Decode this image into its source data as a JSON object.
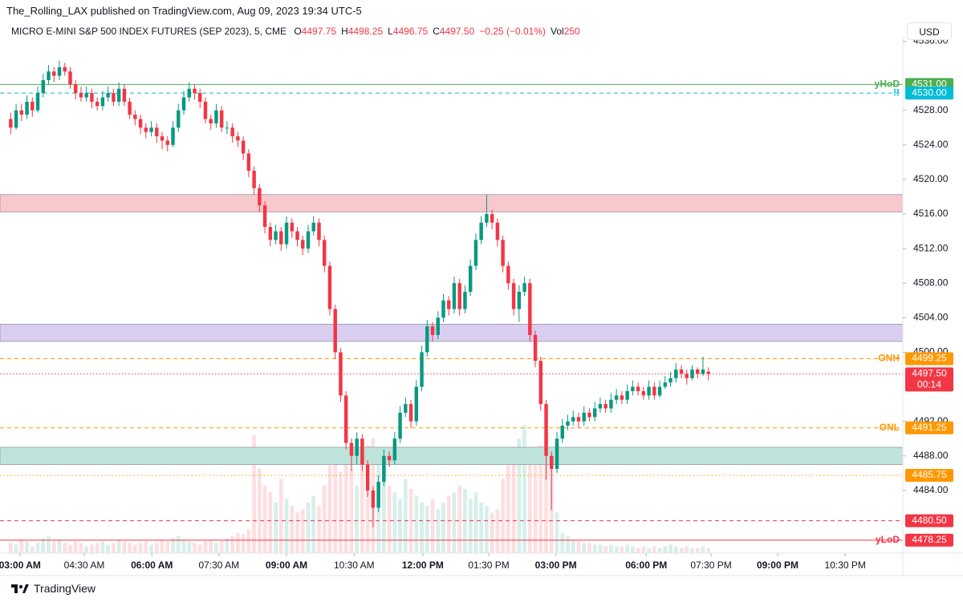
{
  "header": {
    "author_line": "The_Rolling_LAX published on TradingView.com, Aug 09, 2023 19:34 UTC-5"
  },
  "chart_data": {
    "type": "candlestick",
    "symbol": "MICRO E-MINI S&P 500 INDEX FUTURES (SEP 2023), 5, CME",
    "legend": {
      "ohlc": [
        {
          "key": "O",
          "value": 4497.75
        },
        {
          "key": "H",
          "value": 4498.25
        },
        {
          "key": "L",
          "value": 4496.75
        },
        {
          "key": "C",
          "value": {
            "value": 4497.5,
            "label": "4497.50"
          }
        }
      ],
      "change": "−0.25 (−0.01%)",
      "vol_key": "Vol",
      "vol": 250
    },
    "currency": "USD",
    "colors": {
      "up": "#089981",
      "down": "#f23645"
    },
    "candles": [
      [
        4527,
        4527.75,
        4525.25,
        4526
      ],
      [
        4526,
        4528.75,
        4525.75,
        4528
      ],
      [
        4528,
        4528.75,
        4526.75,
        4527.5
      ],
      [
        4527.5,
        4529.75,
        4527,
        4529
      ],
      [
        4529,
        4529.5,
        4527.25,
        4528
      ],
      [
        4528,
        4530.75,
        4527.75,
        4530
      ],
      [
        4530,
        4532.25,
        4529.5,
        4531.5
      ],
      [
        4531.5,
        4533.25,
        4531,
        4532.5
      ],
      [
        4532.5,
        4533,
        4531.25,
        4532
      ],
      [
        4532,
        4533.75,
        4531.5,
        4533
      ],
      [
        4533,
        4533.5,
        4532,
        4532.5
      ],
      [
        4532.5,
        4533,
        4530.5,
        4531
      ],
      [
        4531,
        4531.5,
        4529.25,
        4530
      ],
      [
        4530,
        4530.75,
        4529,
        4529.5
      ],
      [
        4529.5,
        4530.75,
        4529,
        4530
      ],
      [
        4530,
        4530.5,
        4528.25,
        4529
      ],
      [
        4529,
        4529.5,
        4528,
        4528.5
      ],
      [
        4528.5,
        4530.25,
        4528,
        4529.5
      ],
      [
        4529.5,
        4530.75,
        4529,
        4530
      ],
      [
        4530,
        4530.5,
        4528.5,
        4529
      ],
      [
        4529,
        4531.25,
        4528.5,
        4530.5
      ],
      [
        4530.5,
        4531,
        4528.5,
        4529
      ],
      [
        4529,
        4529.5,
        4527,
        4527.5
      ],
      [
        4527.5,
        4528,
        4526.25,
        4527
      ],
      [
        4527,
        4527.5,
        4525.25,
        4526
      ],
      [
        4526,
        4526.5,
        4524.75,
        4525.5
      ],
      [
        4525.5,
        4526.75,
        4525,
        4526
      ],
      [
        4526,
        4526.5,
        4524.25,
        4525
      ],
      [
        4525,
        4525.5,
        4523.5,
        4524.5
      ],
      [
        4524.5,
        4525,
        4523.25,
        4524
      ],
      [
        4524,
        4526.75,
        4523.75,
        4526
      ],
      [
        4526,
        4528.75,
        4525.5,
        4528
      ],
      [
        4528,
        4530.25,
        4527.5,
        4529.5
      ],
      [
        4529.5,
        4531.25,
        4529,
        4530.5
      ],
      [
        4530.5,
        4531,
        4529.25,
        4530
      ],
      [
        4530,
        4530.5,
        4528.25,
        4529
      ],
      [
        4529,
        4529.5,
        4526.5,
        4527
      ],
      [
        4527,
        4527.5,
        4525.75,
        4526.5
      ],
      [
        4526.5,
        4528.75,
        4526,
        4528
      ],
      [
        4528,
        4528.5,
        4525.5,
        4526
      ],
      [
        4526,
        4526.75,
        4525.25,
        4526
      ],
      [
        4526,
        4526.5,
        4524.25,
        4525
      ],
      [
        4525,
        4525.5,
        4523.75,
        4524.5
      ],
      [
        4524.5,
        4525,
        4522.25,
        4523
      ],
      [
        4523,
        4523.5,
        4520.25,
        4521
      ],
      [
        4521,
        4521.5,
        4518.25,
        4519
      ],
      [
        4519,
        4519.5,
        4516.25,
        4517
      ],
      [
        4517,
        4517.5,
        4513.75,
        4514.5
      ],
      [
        4514.5,
        4515,
        4512.25,
        4513
      ],
      [
        4513,
        4514.75,
        4512.5,
        4514
      ],
      [
        4514,
        4514.5,
        4511.75,
        4512.5
      ],
      [
        4512.5,
        4515.75,
        4512,
        4515
      ],
      [
        4515,
        4515.5,
        4513.25,
        4514
      ],
      [
        4514,
        4514.5,
        4512.25,
        4513
      ],
      [
        4513,
        4513.5,
        4511.25,
        4512
      ],
      [
        4512,
        4514.75,
        4511.5,
        4514
      ],
      [
        4514,
        4515.75,
        4513.5,
        4515
      ],
      [
        4515,
        4515.5,
        4512.25,
        4513
      ],
      [
        4513,
        4513.5,
        4509.25,
        4510
      ],
      [
        4510,
        4510.5,
        4504.25,
        4505
      ],
      [
        4505,
        4505.5,
        4499.25,
        4500
      ],
      [
        4500,
        4500.5,
        4494.25,
        4495
      ],
      [
        4495,
        4495.5,
        4488.75,
        4489.5
      ],
      [
        4489.5,
        4490,
        4486.25,
        4488
      ],
      [
        4488,
        4490.75,
        4487,
        4490
      ],
      [
        4490,
        4490.5,
        4486.25,
        4487
      ],
      [
        4487,
        4487.5,
        4483.25,
        4484
      ],
      [
        4484,
        4484.5,
        4479.75,
        4482
      ],
      [
        4482,
        4485.75,
        4481.5,
        4485
      ],
      [
        4485,
        4488.75,
        4484.5,
        4488
      ],
      [
        4488,
        4488.5,
        4486.75,
        4487.5
      ],
      [
        4487.5,
        4490.75,
        4487,
        4490
      ],
      [
        4490,
        4493.75,
        4489.5,
        4493
      ],
      [
        4493,
        4494.75,
        4492.5,
        4494
      ],
      [
        4494,
        4494.5,
        4491.25,
        4492
      ],
      [
        4492,
        4496.75,
        4491.5,
        4496
      ],
      [
        4496,
        4500.75,
        4495.5,
        4500
      ],
      [
        4500,
        4503.75,
        4499.5,
        4503
      ],
      [
        4503,
        4503.5,
        4501.25,
        4502
      ],
      [
        4502,
        4504.75,
        4501.5,
        4504
      ],
      [
        4504,
        4506.75,
        4503.5,
        4506
      ],
      [
        4506,
        4506.5,
        4504.25,
        4505
      ],
      [
        4505,
        4508.75,
        4504.5,
        4508
      ],
      [
        4508,
        4508.5,
        4504.25,
        4505
      ],
      [
        4505,
        4507.75,
        4504.5,
        4507
      ],
      [
        4507,
        4510.75,
        4506.5,
        4510
      ],
      [
        4510,
        4513.75,
        4509.5,
        4513
      ],
      [
        4513,
        4515.75,
        4512.5,
        4515
      ],
      [
        4515,
        4518.25,
        4514.5,
        4516
      ],
      [
        4516,
        4516.5,
        4514.25,
        4515
      ],
      [
        4515,
        4515.5,
        4512.25,
        4513
      ],
      [
        4513,
        4513.5,
        4509.25,
        4510
      ],
      [
        4510,
        4510.5,
        4507.25,
        4508
      ],
      [
        4508,
        4508.5,
        4504.25,
        4505
      ],
      [
        4505,
        4507.75,
        4503.5,
        4507
      ],
      [
        4507,
        4508.75,
        4506.5,
        4508
      ],
      [
        4508,
        4508.5,
        4501.25,
        4502
      ],
      [
        4502,
        4502.5,
        4498.25,
        4499
      ],
      [
        4499,
        4499.5,
        4493.25,
        4494
      ],
      [
        4494,
        4494.5,
        4485.25,
        4488
      ],
      [
        4488,
        4488.5,
        4481.75,
        4486.5
      ],
      [
        4486.5,
        4490.75,
        4486,
        4490
      ],
      [
        4490,
        4492.25,
        4489.5,
        4491.5
      ],
      [
        4491.5,
        4492.75,
        4491,
        4492
      ],
      [
        4492,
        4493.25,
        4491.5,
        4492.5
      ],
      [
        4492.5,
        4493,
        4491.25,
        4492
      ],
      [
        4492,
        4493.75,
        4491.5,
        4493
      ],
      [
        4493,
        4493.5,
        4492,
        4492.5
      ],
      [
        4492.5,
        4494.25,
        4492,
        4493.5
      ],
      [
        4493.5,
        4494.75,
        4493,
        4494
      ],
      [
        4494,
        4494.5,
        4493,
        4493.5
      ],
      [
        4493.5,
        4495.25,
        4493,
        4494.5
      ],
      [
        4494.5,
        4495.75,
        4494,
        4495
      ],
      [
        4495,
        4495.5,
        4494,
        4494.5
      ],
      [
        4494.5,
        4496.25,
        4494,
        4495.5
      ],
      [
        4495.5,
        4496.75,
        4495,
        4496
      ],
      [
        4496,
        4496.5,
        4495,
        4495.5
      ],
      [
        4495.5,
        4496,
        4494.5,
        4495
      ],
      [
        4495,
        4496.75,
        4494.5,
        4496
      ],
      [
        4496,
        4496.5,
        4494.5,
        4495
      ],
      [
        4495,
        4496.75,
        4494.75,
        4496
      ],
      [
        4496,
        4497.25,
        4495.75,
        4496.5
      ],
      [
        4496.5,
        4497.75,
        4496,
        4497
      ],
      [
        4497,
        4498.75,
        4496.5,
        4498
      ],
      [
        4498,
        4498.5,
        4497,
        4497.5
      ],
      [
        4497.5,
        4498,
        4496.25,
        4497
      ],
      [
        4497,
        4498.5,
        4496.75,
        4498
      ],
      [
        4498,
        4498.25,
        4497,
        4497.5
      ],
      [
        4497.5,
        4499.5,
        4497.25,
        4498
      ],
      [
        4497.75,
        4498.25,
        4496.75,
        4497.5
      ]
    ],
    "volume": [
      300,
      250,
      400,
      350,
      200,
      300,
      450,
      500,
      350,
      400,
      300,
      250,
      350,
      300,
      200,
      250,
      300,
      350,
      250,
      300,
      400,
      350,
      300,
      250,
      300,
      350,
      250,
      300,
      400,
      350,
      450,
      500,
      400,
      350,
      300,
      250,
      350,
      400,
      300,
      350,
      450,
      500,
      600,
      550,
      700,
      3500,
      2500,
      2000,
      1800,
      1500,
      2200,
      1600,
      1400,
      1200,
      1300,
      1500,
      1700,
      1400,
      2000,
      2600,
      2800,
      2400,
      3000,
      2500,
      2000,
      2600,
      3200,
      3400,
      2800,
      2500,
      2000,
      1800,
      1600,
      2200,
      1900,
      1700,
      1500,
      1400,
      1600,
      1300,
      1500,
      1700,
      1800,
      2000,
      1900,
      1600,
      1800,
      1500,
      1400,
      1200,
      1300,
      2200,
      2600,
      3000,
      3400,
      3800,
      3000,
      2600,
      3200,
      3600,
      2800,
      1200,
      600,
      500,
      400,
      350,
      300,
      300,
      250,
      250,
      200,
      250,
      200,
      200,
      250,
      200,
      150,
      200,
      150,
      200,
      150,
      200,
      250,
      200,
      150,
      200,
      150,
      150,
      200,
      150
    ],
    "xlim": [
      -1.98,
      164.95
    ],
    "xticks": [
      {
        "value": 1.7,
        "label": "03:00 AM",
        "bold": true
      },
      {
        "value": 13.6,
        "label": "04:30 AM"
      },
      {
        "value": 26.1,
        "label": "06:00 AM",
        "bold": true
      },
      {
        "value": 38.5,
        "label": "07:30 AM"
      },
      {
        "value": 51,
        "label": "09:00 AM",
        "bold": true
      },
      {
        "value": 63.5,
        "label": "10:30 AM"
      },
      {
        "value": 76.2,
        "label": "12:00 PM",
        "bold": true
      },
      {
        "value": 88.4,
        "label": "01:30 PM"
      },
      {
        "value": 100.8,
        "label": "03:00 PM",
        "bold": true
      },
      {
        "value": 117.5,
        "label": "06:00 PM",
        "bold": true
      },
      {
        "value": 129.5,
        "label": "07:30 PM"
      },
      {
        "value": 141.8,
        "label": "09:00 PM",
        "bold": true
      },
      {
        "value": 154.3,
        "label": "10:30 PM"
      }
    ],
    "ylim": [
      4476.75,
      4536.6
    ],
    "yticks": [
      {
        "value": 4484,
        "label": "4484.00"
      },
      {
        "value": 4488,
        "label": "4488.00"
      },
      {
        "value": 4492,
        "label": "4492.00"
      },
      {
        "value": 4500,
        "label": "4500.00"
      },
      {
        "value": 4504,
        "label": "4504.00"
      },
      {
        "value": 4508,
        "label": "4508.00"
      },
      {
        "value": 4512,
        "label": "4512.00"
      },
      {
        "value": 4516,
        "label": "4516.00"
      },
      {
        "value": 4520,
        "label": "4520.00"
      },
      {
        "value": 4524,
        "label": "4524.00"
      },
      {
        "value": 4528,
        "label": "4528.00"
      },
      {
        "value": 4536,
        "label": "4536.00"
      }
    ],
    "zones": [
      {
        "low": 4516.25,
        "high": 4518.25,
        "color": "#f8c8cc"
      },
      {
        "low": 4501.25,
        "high": 4503.25,
        "color": "#d9cdf0"
      },
      {
        "low": 4487,
        "high": 4489,
        "color": "#bfe4dc"
      }
    ],
    "levels": [
      {
        "name": "yHoD",
        "price": {
          "value": 4531,
          "label": "4531.00"
        },
        "color": "#4caf50",
        "style": "solid"
      },
      {
        "name": "!!",
        "price": {
          "value": 4530,
          "label": "4530.00"
        },
        "color": "#00bcd4",
        "style": "dashed"
      },
      {
        "name": "ONH",
        "price": 4499.25,
        "color": "#ff9800",
        "style": "dashed"
      },
      {
        "name": "ONL",
        "price": 4491.25,
        "color": "#ff9800",
        "style": "dashed"
      },
      {
        "price": 4485.75,
        "color": "#ff9800",
        "style": "dotted"
      },
      {
        "price": {
          "value": 4480.5,
          "label": "4480.50"
        },
        "color": "#f23645",
        "style": "dashed"
      },
      {
        "name": "yLoD",
        "price": 4478.25,
        "color": "#f23645",
        "style": "solid"
      }
    ],
    "current": {
      "price": {
        "value": 4497.5,
        "label": "4497.50"
      },
      "countdown": "00:14",
      "color": "#f23645"
    }
  },
  "footer": {
    "brand": "TradingView"
  }
}
